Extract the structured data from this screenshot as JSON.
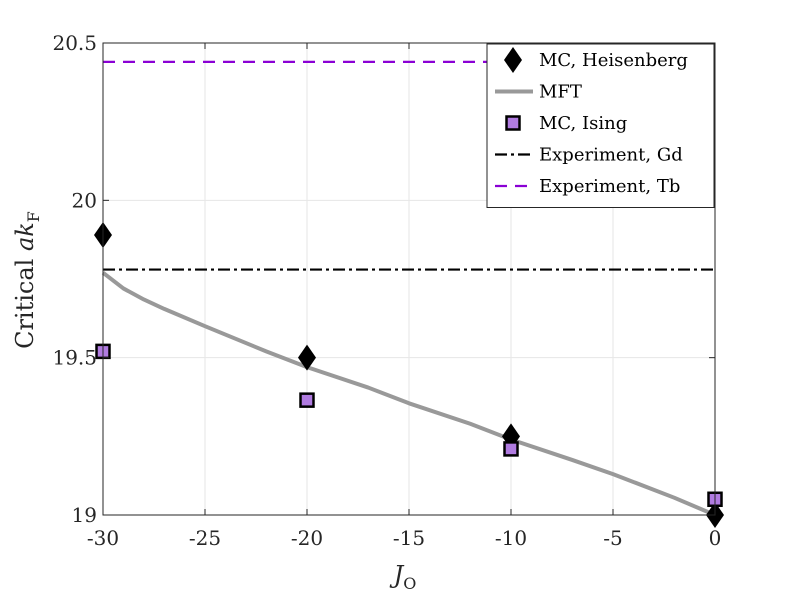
{
  "chart_data": {
    "type": "scatter+line",
    "xlabel": "J",
    "xlabel_sub": "O",
    "ylabel_prefix": "Critical ",
    "ylabel_var": "ak",
    "ylabel_sub": "F",
    "xlim": [
      -30,
      0
    ],
    "ylim": [
      19,
      20.5
    ],
    "grid": true,
    "legend_position": "top-right",
    "x_ticks": [
      -30,
      -25,
      -20,
      -15,
      -10,
      -5,
      0
    ],
    "y_ticks": [
      19,
      19.5,
      20,
      20.5
    ],
    "x_tick_labels": [
      "-30",
      "-25",
      "-20",
      "-15",
      "-10",
      "-5",
      "0"
    ],
    "y_tick_labels": [
      "19",
      "19.5",
      "20",
      "20.5"
    ],
    "series": [
      {
        "name": "MC, Heisenberg",
        "kind": "markers",
        "marker": "diamond",
        "color": "#000000",
        "x": [
          -30,
          -20,
          -10,
          0
        ],
        "y": [
          19.89,
          19.5,
          19.25,
          19.0
        ]
      },
      {
        "name": "MFT",
        "kind": "line",
        "color": "#999999",
        "x": [
          -30,
          -29,
          -28,
          -27,
          -25,
          -22,
          -20,
          -17,
          -15,
          -12,
          -10,
          -7,
          -5,
          -2,
          0
        ],
        "y": [
          19.77,
          19.72,
          19.685,
          19.655,
          19.6,
          19.52,
          19.47,
          19.405,
          19.355,
          19.29,
          19.24,
          19.175,
          19.13,
          19.055,
          19.0
        ]
      },
      {
        "name": "MC, Ising",
        "kind": "markers",
        "marker": "square",
        "color": "#b07be0",
        "edge": "#000000",
        "x": [
          -30,
          -20,
          -10,
          0
        ],
        "y": [
          19.52,
          19.365,
          19.21,
          19.05
        ]
      },
      {
        "name": "Experiment, Gd",
        "kind": "hline",
        "style": "dashdot",
        "color": "#000000",
        "y": 19.78
      },
      {
        "name": "Experiment, Tb",
        "kind": "hline",
        "style": "dashed",
        "color": "#8a00d4",
        "y": 20.44
      }
    ]
  }
}
